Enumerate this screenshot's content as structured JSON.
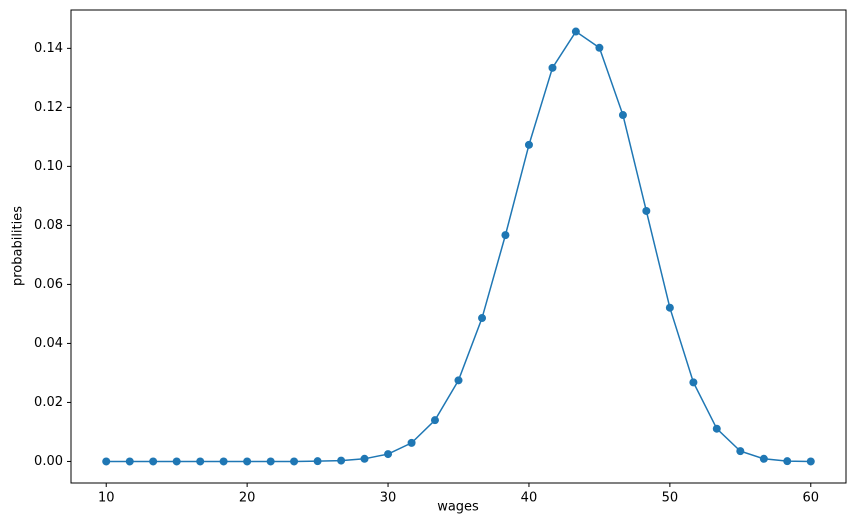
{
  "chart_data": {
    "type": "line",
    "xlabel": "wages",
    "ylabel": "probabilities",
    "x": [
      10,
      11.67,
      13.33,
      15,
      16.67,
      18.33,
      20,
      21.67,
      23.33,
      25,
      26.67,
      28.33,
      30,
      31.67,
      33.33,
      35,
      36.67,
      38.33,
      40,
      41.67,
      43.33,
      45,
      46.67,
      48.33,
      50,
      51.67,
      53.33,
      55,
      56.67,
      58.33,
      60
    ],
    "series": [
      {
        "color": "#1f77b4",
        "marker": "o",
        "values": [
          0,
          0,
          0,
          0,
          0,
          0,
          0,
          0,
          0,
          0.0001,
          0.0003,
          0.0009,
          0.0025,
          0.0063,
          0.014,
          0.0275,
          0.0486,
          0.0767,
          0.1073,
          0.1334,
          0.1457,
          0.1402,
          0.1174,
          0.0849,
          0.0521,
          0.0268,
          0.0111,
          0.0035,
          0.0009,
          0.0001,
          0
        ]
      }
    ],
    "xlim": [
      7.5,
      62.5
    ],
    "xticks": [
      10,
      20,
      30,
      40,
      50,
      60
    ],
    "ylim": [
      -0.0073,
      0.153
    ],
    "yticks": [
      {
        "value": 0,
        "label": "0.00"
      },
      {
        "value": 0.02,
        "label": "0.02"
      },
      {
        "value": 0.04,
        "label": "0.04"
      },
      {
        "value": 0.06,
        "label": "0.06"
      },
      {
        "value": 0.08,
        "label": "0.08"
      },
      {
        "value": 0.1,
        "label": "0.10"
      },
      {
        "value": 0.12,
        "label": "0.12"
      },
      {
        "value": 0.14,
        "label": "0.14"
      }
    ],
    "grid": false
  }
}
